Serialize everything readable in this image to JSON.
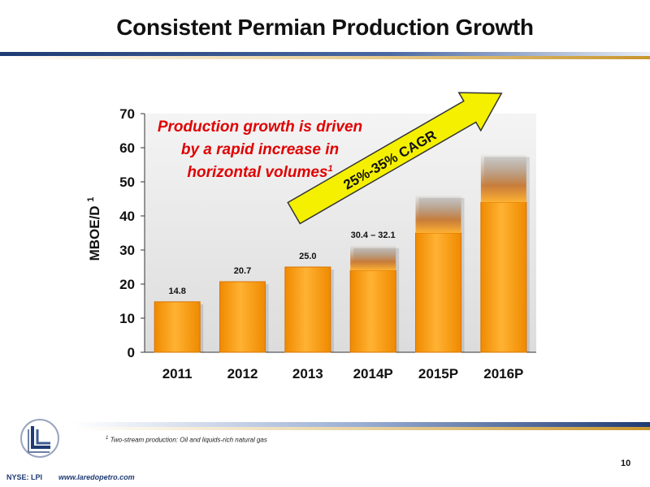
{
  "slide": {
    "title": "Consistent Permian Production Growth",
    "footnote_marker": "1",
    "footnote_text": "Two-stream production: Oil and liquids-rich natural gas",
    "ticker": "NYSE: LPI",
    "url": "www.laredopetro.com",
    "page_number": "10"
  },
  "colors": {
    "bar_top": "#ffb233",
    "bar_bottom": "#ef8a00",
    "bar_side": "#d97300",
    "arrow_fill": "#f4f000",
    "arrow_stroke": "#333333",
    "callout_red": "#e00000",
    "navy": "#1f3b73",
    "gold": "#d7a23a"
  },
  "chart_data": {
    "type": "bar",
    "title": "",
    "xlabel": "",
    "ylabel": "MBOE/D",
    "ylabel_superscript": "1",
    "ylim": [
      0,
      70
    ],
    "yticks": [
      0,
      10,
      20,
      30,
      40,
      50,
      60,
      70
    ],
    "categories": [
      "2011",
      "2012",
      "2013",
      "2014P",
      "2015P",
      "2016P"
    ],
    "values": [
      14.8,
      20.7,
      25.0,
      31.25,
      46,
      58
    ],
    "solid_to": [
      14.8,
      20.7,
      25.0,
      24,
      35,
      44
    ],
    "data_labels": [
      "14.8",
      "20.7",
      "25.0",
      "30.4 – 32.1",
      "",
      ""
    ],
    "grid": false,
    "annotation": {
      "lines": [
        "Production growth is driven",
        "by a rapid increase in",
        "horizontal volumes"
      ],
      "superscript": "1"
    },
    "arrow_label": "25%-35% CAGR"
  }
}
